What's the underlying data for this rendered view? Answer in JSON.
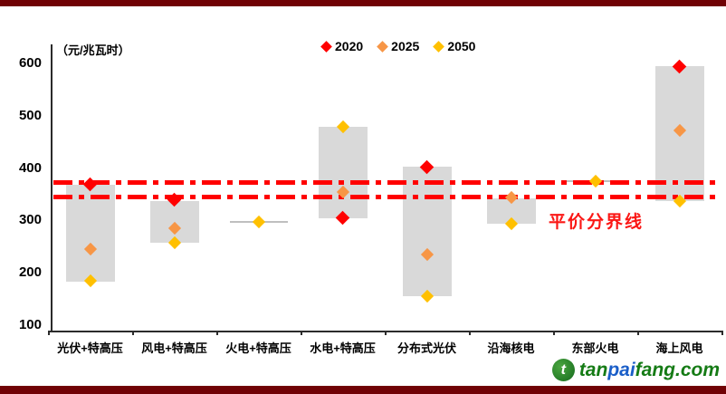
{
  "page": {
    "border_color": "#700205",
    "background": "#FFFFFF"
  },
  "chart_data": {
    "type": "scatter",
    "title": "（元/兆瓦时）",
    "categories": [
      "光伏+特高压",
      "风电+特高压",
      "火电+特高压",
      "水电+特高压",
      "分布式光伏",
      "沿海核电",
      "东部火电",
      "海上风电"
    ],
    "series": [
      {
        "name": "2020",
        "color": "#FF0000",
        "values": [
          380,
          350,
          null,
          315,
          413,
          null,
          null,
          605
        ]
      },
      {
        "name": "2025",
        "color": "#F79646",
        "values": [
          255,
          295,
          null,
          365,
          245,
          355,
          null,
          483
        ]
      },
      {
        "name": "2050",
        "color": "#FFC000",
        "values": [
          195,
          268,
          307,
          490,
          165,
          305,
          385,
          348
        ]
      }
    ],
    "ranges": [
      {
        "low": 193,
        "high": 378
      },
      {
        "low": 268,
        "high": 348
      },
      {
        "low": 307,
        "high": 307
      },
      {
        "low": 315,
        "high": 490
      },
      {
        "low": 165,
        "high": 413
      },
      {
        "low": 305,
        "high": 352
      },
      {
        "low": 385,
        "high": 385
      },
      {
        "low": 348,
        "high": 605
      }
    ],
    "range_color": "#D9D9D9",
    "reference_lines": {
      "values": [
        383,
        356
      ],
      "label": "平价分界线",
      "color": "#FF0000"
    },
    "ylim": [
      100,
      650
    ],
    "yticks": [
      600,
      500,
      400,
      300,
      200,
      100
    ],
    "legend_position": "top",
    "grid": false
  },
  "footer": {
    "logo": {
      "icon": "tanpaifang-leaf-circle",
      "icon_glyph": "t",
      "text_parts": [
        {
          "text": "tan",
          "color": "#157B15"
        },
        {
          "text": "pai",
          "color": "#1A5EC8"
        },
        {
          "text": "fang",
          "color": "#157B15"
        },
        {
          "text": ".com",
          "color": "#157B15"
        }
      ]
    }
  }
}
